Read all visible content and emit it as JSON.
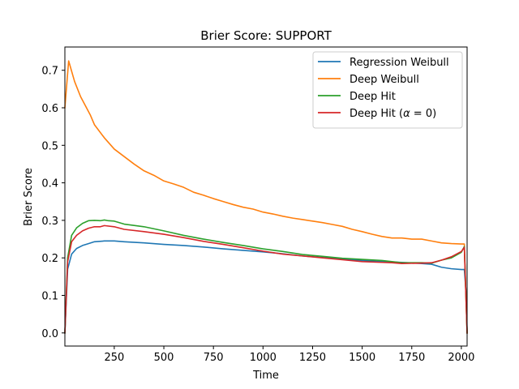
{
  "chart_data": {
    "type": "line",
    "title": "Brier Score: SUPPORT",
    "xlabel": "Time",
    "ylabel": "Brier Score",
    "xlim": [
      1,
      2029
    ],
    "ylim": [
      -0.035,
      0.762
    ],
    "xticks": [
      250,
      500,
      750,
      1000,
      1250,
      1500,
      1750,
      2000
    ],
    "yticks": [
      0.0,
      0.1,
      0.2,
      0.3,
      0.4,
      0.5,
      0.6,
      0.7
    ],
    "xtick_labels": [
      "250",
      "500",
      "750",
      "1000",
      "1250",
      "1500",
      "1750",
      "2000"
    ],
    "ytick_labels": [
      "0.0",
      "0.1",
      "0.2",
      "0.3",
      "0.4",
      "0.5",
      "0.6",
      "0.7"
    ],
    "grid": false,
    "legend_position": "top-right",
    "series": [
      {
        "name": "Regression Weibull",
        "color": "#1f77b4",
        "points": [
          [
            1,
            0.0
          ],
          [
            15,
            0.17
          ],
          [
            35,
            0.21
          ],
          [
            60,
            0.225
          ],
          [
            90,
            0.233
          ],
          [
            120,
            0.238
          ],
          [
            150,
            0.243
          ],
          [
            200,
            0.245
          ],
          [
            250,
            0.245
          ],
          [
            300,
            0.243
          ],
          [
            400,
            0.24
          ],
          [
            500,
            0.236
          ],
          [
            600,
            0.233
          ],
          [
            700,
            0.229
          ],
          [
            800,
            0.224
          ],
          [
            900,
            0.22
          ],
          [
            1000,
            0.216
          ],
          [
            1100,
            0.211
          ],
          [
            1200,
            0.205
          ],
          [
            1300,
            0.201
          ],
          [
            1400,
            0.197
          ],
          [
            1500,
            0.193
          ],
          [
            1600,
            0.19
          ],
          [
            1700,
            0.188
          ],
          [
            1800,
            0.185
          ],
          [
            1850,
            0.183
          ],
          [
            1900,
            0.175
          ],
          [
            1950,
            0.171
          ],
          [
            2000,
            0.169
          ],
          [
            2015,
            0.169
          ],
          [
            2025,
            0.1
          ],
          [
            2029,
            0.0
          ]
        ]
      },
      {
        "name": "Deep Weibull",
        "color": "#ff7f0e",
        "points": [
          [
            1,
            0.6
          ],
          [
            20,
            0.725
          ],
          [
            50,
            0.67
          ],
          [
            80,
            0.63
          ],
          [
            100,
            0.61
          ],
          [
            130,
            0.58
          ],
          [
            150,
            0.555
          ],
          [
            200,
            0.52
          ],
          [
            250,
            0.49
          ],
          [
            300,
            0.47
          ],
          [
            350,
            0.45
          ],
          [
            400,
            0.432
          ],
          [
            450,
            0.42
          ],
          [
            500,
            0.405
          ],
          [
            550,
            0.397
          ],
          [
            600,
            0.388
          ],
          [
            650,
            0.375
          ],
          [
            700,
            0.367
          ],
          [
            750,
            0.358
          ],
          [
            800,
            0.35
          ],
          [
            850,
            0.342
          ],
          [
            900,
            0.335
          ],
          [
            950,
            0.33
          ],
          [
            1000,
            0.322
          ],
          [
            1050,
            0.317
          ],
          [
            1100,
            0.311
          ],
          [
            1150,
            0.306
          ],
          [
            1200,
            0.302
          ],
          [
            1250,
            0.298
          ],
          [
            1300,
            0.294
          ],
          [
            1350,
            0.289
          ],
          [
            1400,
            0.284
          ],
          [
            1450,
            0.276
          ],
          [
            1500,
            0.27
          ],
          [
            1550,
            0.263
          ],
          [
            1600,
            0.257
          ],
          [
            1650,
            0.253
          ],
          [
            1700,
            0.253
          ],
          [
            1750,
            0.25
          ],
          [
            1800,
            0.25
          ],
          [
            1850,
            0.245
          ],
          [
            1900,
            0.24
          ],
          [
            1950,
            0.238
          ],
          [
            2000,
            0.237
          ],
          [
            2015,
            0.237
          ],
          [
            2029,
            0.0
          ]
        ]
      },
      {
        "name": "Deep Hit",
        "color": "#2ca02c",
        "points": [
          [
            1,
            0.0
          ],
          [
            15,
            0.2
          ],
          [
            35,
            0.26
          ],
          [
            60,
            0.28
          ],
          [
            90,
            0.292
          ],
          [
            120,
            0.299
          ],
          [
            150,
            0.3
          ],
          [
            180,
            0.299
          ],
          [
            200,
            0.301
          ],
          [
            220,
            0.299
          ],
          [
            250,
            0.298
          ],
          [
            300,
            0.29
          ],
          [
            400,
            0.283
          ],
          [
            500,
            0.272
          ],
          [
            600,
            0.26
          ],
          [
            700,
            0.25
          ],
          [
            800,
            0.241
          ],
          [
            900,
            0.233
          ],
          [
            1000,
            0.224
          ],
          [
            1100,
            0.217
          ],
          [
            1200,
            0.209
          ],
          [
            1300,
            0.204
          ],
          [
            1400,
            0.199
          ],
          [
            1500,
            0.196
          ],
          [
            1600,
            0.193
          ],
          [
            1650,
            0.19
          ],
          [
            1700,
            0.187
          ],
          [
            1800,
            0.187
          ],
          [
            1850,
            0.186
          ],
          [
            1900,
            0.194
          ],
          [
            1950,
            0.2
          ],
          [
            2000,
            0.215
          ],
          [
            2015,
            0.23
          ],
          [
            2029,
            0.0
          ]
        ]
      },
      {
        "name": "Deep Hit ($\\alpha = 0$)",
        "label_parts": [
          "Deep Hit (",
          "α",
          " = 0)"
        ],
        "color": "#d62728",
        "points": [
          [
            1,
            0.0
          ],
          [
            15,
            0.19
          ],
          [
            35,
            0.243
          ],
          [
            60,
            0.26
          ],
          [
            90,
            0.272
          ],
          [
            120,
            0.279
          ],
          [
            150,
            0.283
          ],
          [
            180,
            0.283
          ],
          [
            200,
            0.286
          ],
          [
            250,
            0.283
          ],
          [
            300,
            0.276
          ],
          [
            400,
            0.27
          ],
          [
            500,
            0.263
          ],
          [
            600,
            0.254
          ],
          [
            700,
            0.244
          ],
          [
            800,
            0.236
          ],
          [
            900,
            0.227
          ],
          [
            1000,
            0.218
          ],
          [
            1100,
            0.21
          ],
          [
            1200,
            0.205
          ],
          [
            1300,
            0.2
          ],
          [
            1400,
            0.195
          ],
          [
            1500,
            0.19
          ],
          [
            1600,
            0.188
          ],
          [
            1650,
            0.187
          ],
          [
            1700,
            0.185
          ],
          [
            1800,
            0.186
          ],
          [
            1850,
            0.187
          ],
          [
            1900,
            0.194
          ],
          [
            1950,
            0.203
          ],
          [
            2000,
            0.217
          ],
          [
            2015,
            0.228
          ],
          [
            2029,
            0.0
          ]
        ]
      }
    ]
  }
}
